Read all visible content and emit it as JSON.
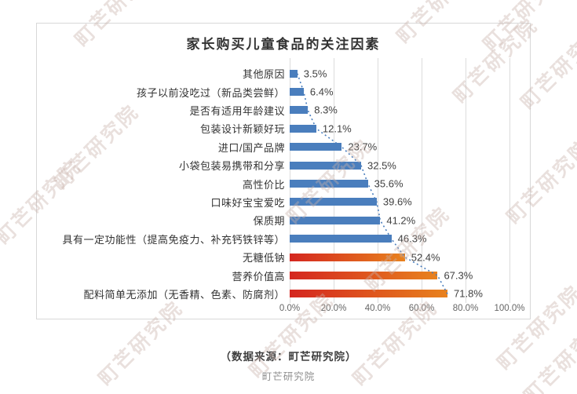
{
  "chart_data": {
    "type": "bar",
    "orientation": "horizontal",
    "title": "家长购买儿童食品的关注因素",
    "categories": [
      "其他原因",
      "孩子以前没吃过（新品类尝鲜）",
      "是否有适用年龄建议",
      "包装设计新颖好玩",
      "进口/国产品牌",
      "小袋包装易携带和分享",
      "高性价比",
      "口味好宝宝爱吃",
      "保质期",
      "具有一定功能性（提高免疫力、补充钙铁锌等）",
      "无糖低钠",
      "营养价值高",
      "配料简单无添加（无香精、色素、防腐剂）"
    ],
    "values": [
      3.5,
      6.4,
      8.3,
      12.1,
      23.7,
      32.5,
      35.6,
      39.6,
      41.2,
      46.3,
      52.4,
      67.3,
      71.8
    ],
    "value_labels": [
      "3.5%",
      "6.4%",
      "8.3%",
      "12.1%",
      "23.7%",
      "32.5%",
      "35.6%",
      "39.6%",
      "41.2%",
      "46.3%",
      "52.4%",
      "67.3%",
      "71.8%"
    ],
    "xlim": [
      0,
      100
    ],
    "x_tick_labels": [
      "0.0%",
      "20.0%",
      "40.0%",
      "60.0%",
      "80.0%",
      "100.0%"
    ],
    "grid": true,
    "legend": false,
    "bar_color_default": "#4a7ebd",
    "highlight_gradient": [
      "#d4261f",
      "#e8821e"
    ],
    "highlight_start_index": 10,
    "trendline": {
      "connects": "bar-ends",
      "style": "dotted",
      "color": "#4a7ebd"
    }
  },
  "footer": {
    "source_note": "（数据来源：町芒研究院）",
    "caption": "町芒研究院"
  },
  "watermark": {
    "text": "町芒研究院"
  }
}
